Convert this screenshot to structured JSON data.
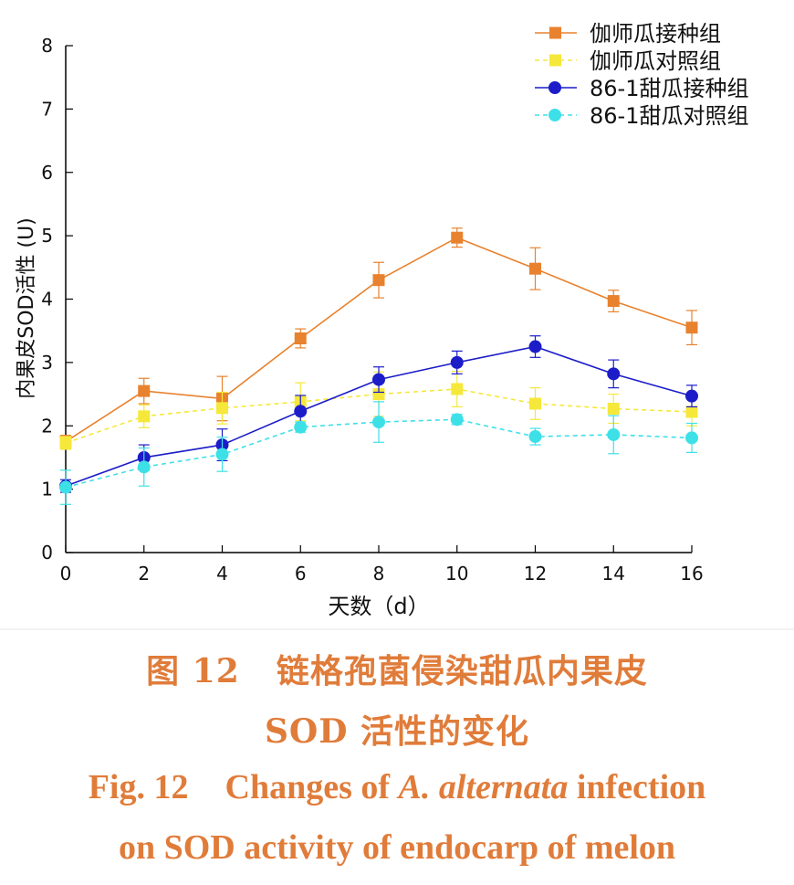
{
  "chart_data": {
    "type": "line",
    "x": [
      0,
      2,
      4,
      6,
      8,
      10,
      12,
      14,
      16
    ],
    "xlabel": "天数（d）",
    "ylabel": "内果皮SOD活性 (U)",
    "xlim": [
      0,
      16
    ],
    "ylim": [
      0,
      8
    ],
    "xticks": [
      "0",
      "2",
      "4",
      "6",
      "8",
      "10",
      "12",
      "14",
      "16"
    ],
    "yticks": [
      "0",
      "1",
      "2",
      "3",
      "4",
      "5",
      "6",
      "7",
      "8"
    ],
    "grid": false,
    "legend_position": "top-right",
    "series": [
      {
        "name": "伽师瓜接种组",
        "color": "#e8822e",
        "marker": "square",
        "dash": "solid",
        "values": [
          1.75,
          2.55,
          2.43,
          3.38,
          4.3,
          4.97,
          4.48,
          3.97,
          3.55
        ],
        "errors": [
          0.1,
          0.2,
          0.35,
          0.15,
          0.28,
          0.15,
          0.33,
          0.17,
          0.27
        ]
      },
      {
        "name": "伽师瓜对照组",
        "color": "#f5e83a",
        "marker": "square",
        "dash": "dashed",
        "values": [
          1.73,
          2.15,
          2.28,
          2.38,
          2.5,
          2.58,
          2.35,
          2.27,
          2.22
        ],
        "errors": [
          0.1,
          0.18,
          0.25,
          0.3,
          0.35,
          0.28,
          0.25,
          0.23,
          0.22
        ]
      },
      {
        "name": "86-1甜瓜接种组",
        "color": "#1c1cc8",
        "marker": "circle",
        "dash": "solid",
        "values": [
          1.05,
          1.5,
          1.7,
          2.23,
          2.73,
          3.0,
          3.25,
          2.82,
          2.47
        ],
        "errors": [
          0.1,
          0.2,
          0.25,
          0.25,
          0.2,
          0.18,
          0.17,
          0.22,
          0.17
        ]
      },
      {
        "name": "86-1甜瓜对照组",
        "color": "#3ee0e8",
        "marker": "circle",
        "dash": "dashed",
        "values": [
          1.03,
          1.35,
          1.55,
          1.98,
          2.06,
          2.1,
          1.83,
          1.86,
          1.81
        ],
        "errors": [
          0.27,
          0.3,
          0.27,
          0.08,
          0.32,
          0.08,
          0.13,
          0.3,
          0.23
        ]
      }
    ]
  },
  "caption": {
    "zh_line1_label": "图 12",
    "zh_line1_text": "链格孢菌侵染甜瓜内果皮",
    "zh_line2": "SOD 活性的变化",
    "en_line1_label": "Fig. 12",
    "en_line1_pre": "Changes of ",
    "en_line1_italic": "A. alternata",
    "en_line1_post": " infection",
    "en_line2": "on SOD activity of endocarp of melon"
  }
}
